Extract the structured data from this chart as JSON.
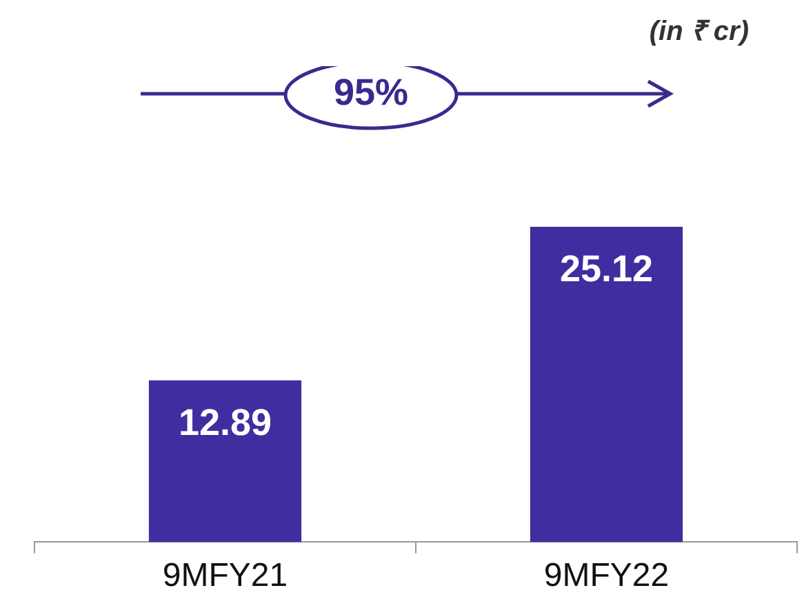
{
  "chart_data": {
    "type": "bar",
    "categories": [
      "9MFY21",
      "9MFY22"
    ],
    "values": [
      12.89,
      25.12
    ],
    "color": "#3f2ea0",
    "data_labels": true,
    "annotations": [
      "(in ₹ cr)",
      "95%"
    ]
  }
}
